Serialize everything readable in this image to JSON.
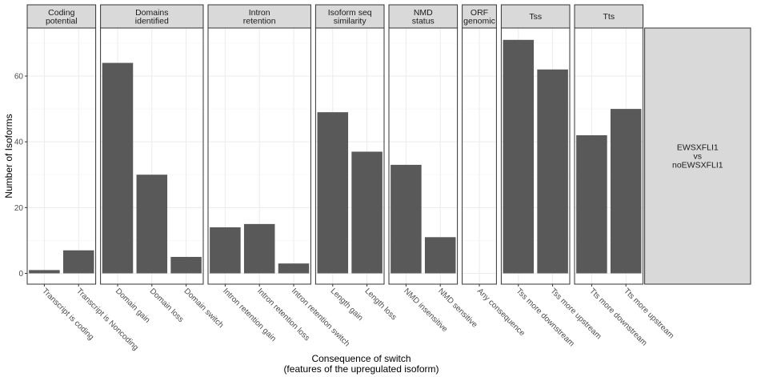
{
  "chart_data": {
    "type": "bar",
    "ylabel": "Number of Isoforms",
    "xlabel_lines": [
      "Consequence of switch",
      "(features of the upregulated isoform)"
    ],
    "ylim": [
      0,
      75
    ],
    "yticks": [
      0,
      20,
      40,
      60
    ],
    "row_label_lines": [
      "EWSXFLI1",
      "vs",
      "noEWSXFLI1"
    ],
    "facets": [
      {
        "label_lines": [
          "Coding",
          "potential"
        ],
        "categories": [
          "Transcript is coding",
          "Transcript is Noncoding"
        ],
        "values": [
          1,
          7
        ]
      },
      {
        "label_lines": [
          "Domains",
          "identified"
        ],
        "categories": [
          "Domain gain",
          "Domain loss",
          "Domain switch"
        ],
        "values": [
          64,
          30,
          5
        ]
      },
      {
        "label_lines": [
          "Intron",
          "retention"
        ],
        "categories": [
          "Intron retention gain",
          "Intron retention loss",
          "Intron retention switch"
        ],
        "values": [
          14,
          15,
          3
        ]
      },
      {
        "label_lines": [
          "Isoform seq",
          "similarity"
        ],
        "categories": [
          "Length gain",
          "Length loss"
        ],
        "values": [
          49,
          37
        ]
      },
      {
        "label_lines": [
          "NMD",
          "status"
        ],
        "categories": [
          "NMD insensitive",
          "NMD sensitive"
        ],
        "values": [
          33,
          11
        ]
      },
      {
        "label_lines": [
          "ORF",
          "genomic"
        ],
        "categories": [
          "Any consequence"
        ],
        "values": [
          null
        ]
      },
      {
        "label_lines": [
          "Tss"
        ],
        "categories": [
          "Tss more downstream",
          "Tss more upstream"
        ],
        "values": [
          71,
          62
        ]
      },
      {
        "label_lines": [
          "Tts"
        ],
        "categories": [
          "Tts more downstream",
          "Tts more upstream"
        ],
        "values": [
          42,
          50
        ]
      }
    ]
  }
}
